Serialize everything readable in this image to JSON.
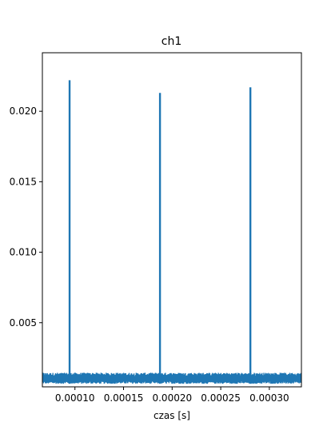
{
  "chart_data": {
    "type": "line",
    "title": "ch1",
    "xlabel": "czas [s]",
    "ylabel": "",
    "xlim": [
      6.65e-05,
      0.000333
    ],
    "ylim": [
      0.00045,
      0.02415
    ],
    "xticks": [
      0.0001,
      0.00015,
      0.0002,
      0.00025,
      0.0003
    ],
    "xtick_labels": [
      "0.00010",
      "0.00015",
      "0.00020",
      "0.00025",
      "0.00030"
    ],
    "yticks": [
      0.005,
      0.01,
      0.015,
      0.02
    ],
    "ytick_labels": [
      "0.005",
      "0.010",
      "0.015",
      "0.020"
    ],
    "grid": false,
    "series": [
      {
        "name": "ch1",
        "color": "#1f77b4",
        "baseline_range": [
          0.00067,
          0.00145
        ],
        "spikes": [
          {
            "x": 9.45e-05,
            "y": 0.0222
          },
          {
            "x": 0.0001875,
            "y": 0.0213
          },
          {
            "x": 0.0002805,
            "y": 0.0217
          }
        ]
      }
    ]
  }
}
